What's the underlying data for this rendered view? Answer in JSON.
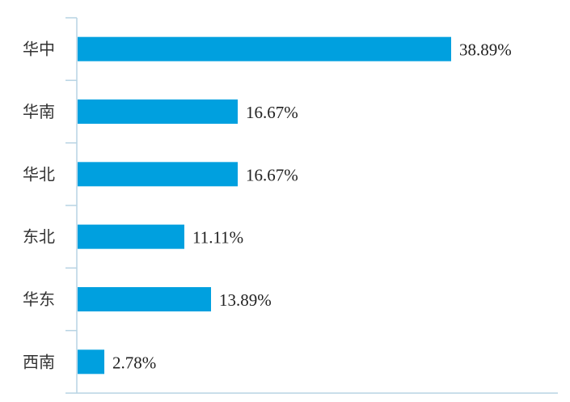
{
  "colors": {
    "bar": "#00A0DF",
    "axis": "#B7D3E3",
    "label": "#333333",
    "value": "#222222"
  },
  "chart_data": {
    "type": "bar",
    "orientation": "horizontal",
    "categories": [
      "华中",
      "华南",
      "华北",
      "东北",
      "华东",
      "西南"
    ],
    "values": [
      38.89,
      16.67,
      16.67,
      11.11,
      13.89,
      2.78
    ],
    "value_labels": [
      "38.89%",
      "16.67%",
      "16.67%",
      "11.11%",
      "13.89%",
      "2.78%"
    ],
    "unit": "%",
    "title": "",
    "xlabel": "",
    "ylabel": "",
    "xlim": [
      0,
      40
    ],
    "grid": false,
    "legend": "none"
  }
}
